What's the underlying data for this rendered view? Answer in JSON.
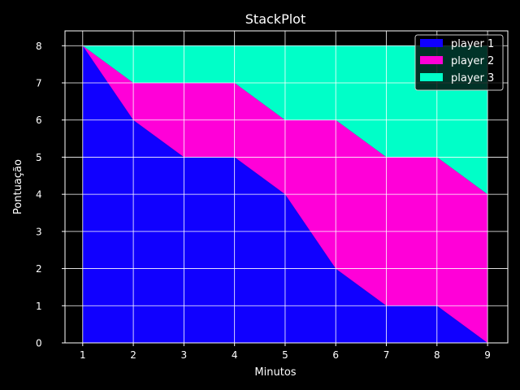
{
  "chart_data": {
    "type": "area",
    "stacked": true,
    "title": "StackPlot",
    "xlabel": "Minutos",
    "ylabel": "Pontuação",
    "x": [
      1,
      2,
      3,
      4,
      5,
      6,
      7,
      8,
      9
    ],
    "xlim": [
      0.65,
      9.4
    ],
    "ylim": [
      0,
      8.4
    ],
    "xticks": [
      "1",
      "2",
      "3",
      "4",
      "5",
      "6",
      "7",
      "8",
      "9"
    ],
    "yticks": [
      "0",
      "1",
      "2",
      "3",
      "4",
      "5",
      "6",
      "7",
      "8"
    ],
    "grid": true,
    "legend_position": "top-right",
    "background": "#000000",
    "series": [
      {
        "name": "player 1",
        "color": "#1000ff",
        "values": [
          8,
          6,
          5,
          5,
          4,
          2,
          1,
          1,
          0
        ]
      },
      {
        "name": "player 2",
        "color": "#ff00d8",
        "values": [
          0,
          1,
          2,
          2,
          2,
          4,
          4,
          4,
          4
        ]
      },
      {
        "name": "player 3",
        "color": "#00ffc8",
        "values": [
          0,
          1,
          1,
          1,
          2,
          2,
          3,
          3,
          4
        ]
      }
    ]
  }
}
